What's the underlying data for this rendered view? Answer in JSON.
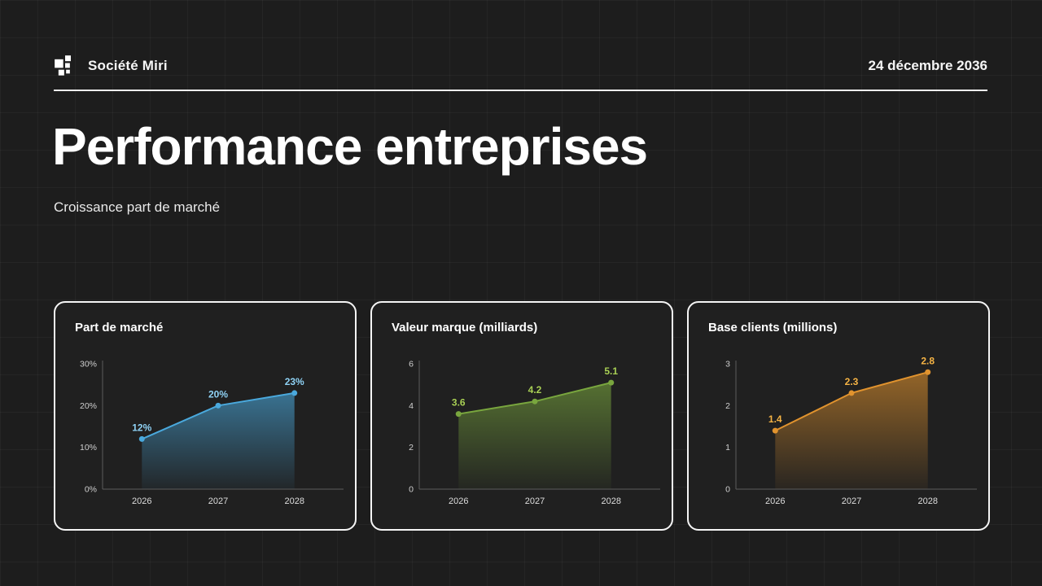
{
  "header": {
    "company": "Société Miri",
    "date": "24 décembre 2036"
  },
  "page": {
    "title": "Performance entreprises",
    "subtitle": "Croissance part de marché"
  },
  "chart_data": [
    {
      "type": "area",
      "title": "Part de marché",
      "categories": [
        "2026",
        "2027",
        "2028"
      ],
      "values": [
        12,
        20,
        23
      ],
      "data_labels": [
        "12%",
        "20%",
        "23%"
      ],
      "ylim": [
        0,
        30
      ],
      "yticks": [
        0,
        10,
        20,
        30
      ],
      "ytick_suffix": "%",
      "color": "#4aa9dd",
      "label_color": "#8fd2f5",
      "legend_position": "none",
      "grid": false
    },
    {
      "type": "area",
      "title": "Valeur marque (milliards)",
      "categories": [
        "2026",
        "2027",
        "2028"
      ],
      "values": [
        3.6,
        4.2,
        5.1
      ],
      "data_labels": [
        "3.6",
        "4.2",
        "5.1"
      ],
      "ylim": [
        0,
        6
      ],
      "yticks": [
        0,
        2,
        4,
        6
      ],
      "ytick_suffix": "",
      "color": "#79a63e",
      "label_color": "#a9d055",
      "legend_position": "none",
      "grid": false
    },
    {
      "type": "area",
      "title": "Base clients (millions)",
      "categories": [
        "2026",
        "2027",
        "2028"
      ],
      "values": [
        1.4,
        2.3,
        2.8
      ],
      "data_labels": [
        "1.4",
        "2.3",
        "2.8"
      ],
      "ylim": [
        0,
        3
      ],
      "yticks": [
        0,
        1,
        2,
        3
      ],
      "ytick_suffix": "",
      "color": "#e1932e",
      "label_color": "#f6b445",
      "legend_position": "none",
      "grid": false
    }
  ]
}
